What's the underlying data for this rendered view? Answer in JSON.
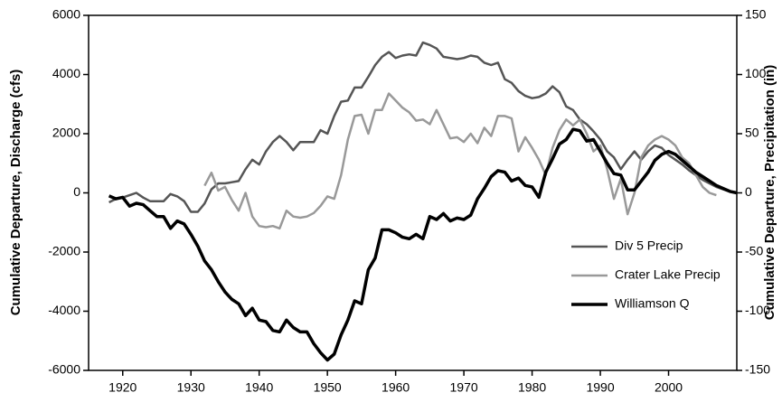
{
  "chart_data": {
    "type": "line",
    "ylabel": "Cumulative Departure, Discharge (cfs)",
    "y2label": "Cumulative Departure, Precipitation (in)",
    "x": [
      1918,
      1919,
      1920,
      1921,
      1922,
      1923,
      1924,
      1925,
      1926,
      1927,
      1928,
      1929,
      1930,
      1931,
      1932,
      1933,
      1934,
      1935,
      1936,
      1937,
      1938,
      1939,
      1940,
      1941,
      1942,
      1943,
      1944,
      1945,
      1946,
      1947,
      1948,
      1949,
      1950,
      1951,
      1952,
      1953,
      1954,
      1955,
      1956,
      1957,
      1958,
      1959,
      1960,
      1961,
      1962,
      1963,
      1964,
      1965,
      1966,
      1967,
      1968,
      1969,
      1970,
      1971,
      1972,
      1973,
      1974,
      1975,
      1976,
      1977,
      1978,
      1979,
      1980,
      1981,
      1982,
      1983,
      1984,
      1985,
      1986,
      1987,
      1988,
      1989,
      1990,
      1991,
      1992,
      1993,
      1994,
      1995,
      1996,
      1997,
      1998,
      1999,
      2000,
      2001,
      2002,
      2003,
      2004,
      2005,
      2006,
      2007,
      2008,
      2009,
      2010
    ],
    "series": [
      {
        "name": "Div 5 Precip",
        "color": "#555555",
        "width": 2.5,
        "axis": "y2",
        "values": [
          -8,
          -5,
          -4,
          -2,
          0,
          -4,
          -7,
          -7,
          -7,
          -1,
          -3,
          -7,
          -16,
          -16,
          -9,
          3,
          8,
          8,
          9,
          10,
          20,
          28,
          24,
          35,
          43,
          48,
          43,
          36,
          43,
          43,
          43,
          53,
          50,
          65,
          77,
          78,
          89,
          89,
          98,
          108,
          115,
          119,
          114,
          116,
          117,
          116,
          127,
          125,
          122,
          115,
          114,
          113,
          114,
          116,
          115,
          110,
          108,
          110,
          96,
          93,
          86,
          82,
          80,
          81,
          84,
          90,
          85,
          73,
          70,
          62,
          58,
          52,
          45,
          35,
          30,
          20,
          28,
          35,
          28,
          35,
          40,
          38,
          32,
          28,
          24,
          19,
          15,
          11,
          8,
          5,
          3,
          1,
          0
        ]
      },
      {
        "name": "Crater Lake Precip",
        "color": "#999999",
        "width": 2.5,
        "axis": "y2",
        "values": [
          null,
          null,
          null,
          null,
          null,
          null,
          null,
          null,
          null,
          null,
          null,
          null,
          null,
          null,
          6,
          17,
          2,
          5,
          -6,
          -15,
          0,
          -20,
          -28,
          -29,
          -28,
          -30,
          -15,
          -20,
          -21,
          -20,
          -17,
          -11,
          -3,
          -5,
          15,
          45,
          65,
          66,
          50,
          70,
          70,
          84,
          78,
          72,
          68,
          61,
          62,
          58,
          70,
          58,
          46,
          47,
          43,
          50,
          42,
          55,
          48,
          65,
          65,
          63,
          35,
          47,
          38,
          28,
          15,
          38,
          53,
          62,
          57,
          62,
          50,
          35,
          40,
          20,
          -5,
          12,
          -18,
          0,
          30,
          40,
          45,
          48,
          45,
          40,
          30,
          25,
          15,
          5,
          0,
          -2,
          null,
          null,
          null
        ]
      },
      {
        "name": "Williamson Q",
        "color": "#000000",
        "width": 3.5,
        "axis": "y",
        "values": [
          -100,
          -200,
          -150,
          -450,
          -350,
          -400,
          -600,
          -800,
          -800,
          -1200,
          -950,
          -1050,
          -1400,
          -1800,
          -2300,
          -2600,
          -3000,
          -3350,
          -3600,
          -3750,
          -4150,
          -3900,
          -4300,
          -4350,
          -4650,
          -4700,
          -4300,
          -4550,
          -4700,
          -4700,
          -5100,
          -5400,
          -5650,
          -5450,
          -4800,
          -4300,
          -3650,
          -3750,
          -2600,
          -2200,
          -1250,
          -1250,
          -1350,
          -1500,
          -1550,
          -1400,
          -1550,
          -800,
          -900,
          -700,
          -950,
          -850,
          -900,
          -750,
          -200,
          150,
          550,
          750,
          700,
          400,
          500,
          250,
          200,
          -150,
          700,
          1150,
          1650,
          1800,
          2150,
          2100,
          1750,
          1800,
          1400,
          1000,
          650,
          600,
          100,
          100,
          400,
          700,
          1100,
          1300,
          1400,
          1300,
          1100,
          900,
          700,
          550,
          400,
          250,
          150,
          50,
          0
        ]
      }
    ],
    "xlim": [
      1915,
      2010
    ],
    "xticks": [
      1920,
      1930,
      1940,
      1950,
      1960,
      1970,
      1980,
      1990,
      2000
    ],
    "ylim": [
      -6000,
      6000
    ],
    "yticks": [
      -6000,
      -4000,
      -2000,
      0,
      2000,
      4000,
      6000
    ],
    "y2lim": [
      -150,
      150
    ],
    "y2ticks": [
      -150,
      -100,
      -50,
      0,
      50,
      100,
      150
    ],
    "grid": false,
    "legend": "lower right"
  }
}
